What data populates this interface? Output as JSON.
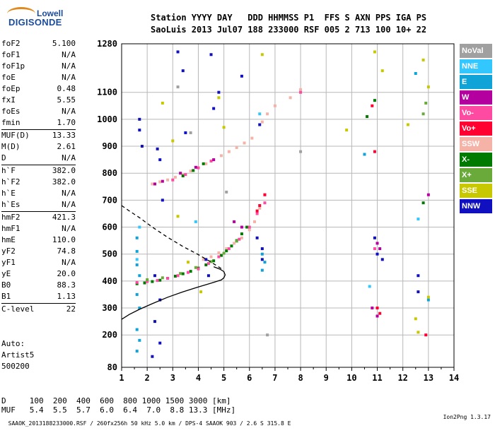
{
  "logo": {
    "line1": "Lowell",
    "line2": "DIGISONDE"
  },
  "header": {
    "line1": "Station YYYY DAY   DDD HHMMSS P1  FFS S AXN PPS IGA PS",
    "line2": "SaoLuis 2013 Jul07 188 233000 RSF 005 2 713 100 10+ 22"
  },
  "parameters": [
    [
      {
        "key": "foF2",
        "value": "5.100"
      },
      {
        "key": "foF1",
        "value": "N/A"
      },
      {
        "key": "foF1p",
        "value": "N/A"
      },
      {
        "key": "foE",
        "value": "N/A"
      },
      {
        "key": "foEp",
        "value": "0.48"
      },
      {
        "key": "fxI",
        "value": "5.55"
      },
      {
        "key": "foEs",
        "value": "N/A"
      },
      {
        "key": "fmin",
        "value": "1.70"
      }
    ],
    [
      {
        "key": "MUF(D)",
        "value": "13.33"
      },
      {
        "key": "M(D)",
        "value": "2.61"
      },
      {
        "key": "D",
        "value": "N/A"
      }
    ],
    [
      {
        "key": "h`F",
        "value": "382.0"
      },
      {
        "key": "h`F2",
        "value": "382.0"
      },
      {
        "key": "h`E",
        "value": "N/A"
      },
      {
        "key": "h`Es",
        "value": "N/A"
      }
    ],
    [
      {
        "key": "hmF2",
        "value": "421.3"
      },
      {
        "key": "hmF1",
        "value": "N/A"
      },
      {
        "key": "hmE",
        "value": "110.0"
      },
      {
        "key": "yF2",
        "value": "74.8"
      },
      {
        "key": "yF1",
        "value": "N/A"
      },
      {
        "key": "yE",
        "value": "20.0"
      },
      {
        "key": "B0",
        "value": "88.3"
      },
      {
        "key": "B1",
        "value": "1.13"
      }
    ],
    [
      {
        "key": "C-level",
        "value": "22"
      }
    ]
  ],
  "auto": {
    "line1": "Auto:",
    "line2": "Artist5",
    "line3": "500200"
  },
  "muf_table": {
    "d_row": "D     100  200  400  600  800 1000 1500 3000 [km]",
    "muf_row": "MUF   5.4  5.5  5.7  6.0  6.4  7.0  8.8 13.3 [MHz]"
  },
  "footer": {
    "left": "SAAOK_2013188233000.RSF / 260fx256h 50 kHz 5.0 km / DPS-4 SAAOK 903 / 2.6 S 315.8 E",
    "right": "Ion2Png 1.3.17"
  },
  "legend": [
    {
      "label": "NoVal",
      "color": "#a0a0a0"
    },
    {
      "label": "NNE",
      "color": "#33c7ff"
    },
    {
      "label": "E",
      "color": "#0fa3d8"
    },
    {
      "label": "W",
      "color": "#b4009f"
    },
    {
      "label": "Vo-",
      "color": "#ff4aa2"
    },
    {
      "label": "Vo+",
      "color": "#ff0030"
    },
    {
      "label": "SSW",
      "color": "#f5b3a8"
    },
    {
      "label": "X-",
      "color": "#007a00"
    },
    {
      "label": "X+",
      "color": "#6aaa3a"
    },
    {
      "label": "SSE",
      "color": "#c8c800"
    },
    {
      "label": "NNW",
      "color": "#1010c0"
    }
  ],
  "chart_data": {
    "type": "scatter",
    "xlabel": "",
    "ylabel": "",
    "xlim": [
      1,
      14
    ],
    "ylim": [
      80,
      1280
    ],
    "xticks": [
      1,
      2,
      3,
      4,
      5,
      6,
      7,
      8,
      9,
      10,
      11,
      12,
      13,
      14
    ],
    "yticks": [
      80,
      200,
      300,
      400,
      500,
      600,
      700,
      800,
      900,
      1000,
      1100,
      1280
    ],
    "grid": true,
    "series": [
      {
        "name": "SSW",
        "color": "#f5b3a8",
        "points": [
          [
            2.2,
            760
          ],
          [
            2.5,
            768
          ],
          [
            2.8,
            775
          ],
          [
            3.1,
            785
          ],
          [
            3.4,
            795
          ],
          [
            3.7,
            808
          ],
          [
            4.0,
            820
          ],
          [
            4.3,
            835
          ],
          [
            4.6,
            850
          ],
          [
            4.9,
            865
          ],
          [
            5.2,
            880
          ],
          [
            5.5,
            895
          ],
          [
            5.8,
            912
          ],
          [
            6.1,
            930
          ],
          [
            6.5,
            990
          ],
          [
            6.7,
            1020
          ],
          [
            7.0,
            1050
          ],
          [
            7.6,
            1080
          ],
          [
            8.0,
            1110
          ],
          [
            4.2,
            480
          ],
          [
            4.5,
            490
          ],
          [
            4.8,
            505
          ],
          [
            5.1,
            520
          ],
          [
            5.4,
            540
          ],
          [
            5.7,
            560
          ],
          [
            6.0,
            590
          ],
          [
            6.2,
            620
          ],
          [
            6.4,
            670
          ]
        ]
      },
      {
        "name": "X-",
        "color": "#007a00",
        "points": [
          [
            1.6,
            390
          ],
          [
            1.9,
            393
          ],
          [
            2.2,
            398
          ],
          [
            2.5,
            403
          ],
          [
            2.8,
            410
          ],
          [
            3.1,
            418
          ],
          [
            3.4,
            427
          ],
          [
            3.7,
            436
          ],
          [
            4.0,
            448
          ],
          [
            4.3,
            460
          ],
          [
            4.6,
            475
          ],
          [
            4.9,
            495
          ],
          [
            5.1,
            512
          ],
          [
            5.3,
            530
          ],
          [
            5.5,
            550
          ],
          [
            5.7,
            575
          ],
          [
            5.9,
            600
          ],
          [
            3.4,
            790
          ],
          [
            3.8,
            810
          ],
          [
            4.2,
            835
          ],
          [
            10.6,
            1010
          ],
          [
            10.9,
            1070
          ],
          [
            12.8,
            690
          ]
        ]
      },
      {
        "name": "Vo-",
        "color": "#ff4aa2",
        "points": [
          [
            1.6,
            395
          ],
          [
            2.0,
            398
          ],
          [
            2.4,
            402
          ],
          [
            2.8,
            410
          ],
          [
            3.2,
            420
          ],
          [
            3.6,
            432
          ],
          [
            4.0,
            445
          ],
          [
            4.4,
            465
          ],
          [
            4.8,
            490
          ],
          [
            5.2,
            520
          ],
          [
            5.6,
            555
          ],
          [
            6.0,
            600
          ],
          [
            6.3,
            650
          ],
          [
            6.6,
            690
          ],
          [
            6.6,
            720
          ],
          [
            3.0,
            775
          ],
          [
            3.5,
            795
          ],
          [
            4.0,
            820
          ],
          [
            4.5,
            845
          ],
          [
            8.0,
            1100
          ],
          [
            10.9,
            520
          ]
        ]
      },
      {
        "name": "NNW",
        "color": "#1010c0",
        "points": [
          [
            1.7,
            1000
          ],
          [
            1.7,
            960
          ],
          [
            1.8,
            900
          ],
          [
            2.4,
            890
          ],
          [
            2.5,
            850
          ],
          [
            2.6,
            700
          ],
          [
            2.3,
            420
          ],
          [
            2.5,
            330
          ],
          [
            2.3,
            250
          ],
          [
            2.5,
            170
          ],
          [
            2.2,
            120
          ],
          [
            3.2,
            1250
          ],
          [
            3.4,
            1180
          ],
          [
            3.5,
            950
          ],
          [
            4.3,
            480
          ],
          [
            4.4,
            420
          ],
          [
            4.5,
            1240
          ],
          [
            4.6,
            1040
          ],
          [
            4.8,
            1100
          ],
          [
            5.7,
            1160
          ],
          [
            6.4,
            980
          ],
          [
            6.3,
            560
          ],
          [
            6.5,
            520
          ],
          [
            6.5,
            480
          ],
          [
            10.9,
            560
          ],
          [
            11.0,
            500
          ],
          [
            11.2,
            480
          ],
          [
            12.6,
            360
          ],
          [
            12.6,
            420
          ]
        ]
      },
      {
        "name": "E",
        "color": "#0fa3d8",
        "points": [
          [
            1.6,
            560
          ],
          [
            1.6,
            510
          ],
          [
            1.6,
            460
          ],
          [
            1.7,
            420
          ],
          [
            1.6,
            350
          ],
          [
            1.7,
            300
          ],
          [
            1.6,
            220
          ],
          [
            1.7,
            180
          ],
          [
            1.6,
            140
          ],
          [
            6.5,
            500
          ],
          [
            6.6,
            470
          ],
          [
            6.5,
            440
          ],
          [
            13.0,
            330
          ],
          [
            12.5,
            1170
          ],
          [
            10.5,
            870
          ]
        ]
      },
      {
        "name": "W",
        "color": "#b4009f",
        "points": [
          [
            2.3,
            760
          ],
          [
            2.6,
            770
          ],
          [
            3.3,
            800
          ],
          [
            3.9,
            822
          ],
          [
            4.6,
            850
          ],
          [
            5.4,
            620
          ],
          [
            5.7,
            600
          ],
          [
            11.0,
            540
          ],
          [
            11.1,
            520
          ],
          [
            10.8,
            300
          ],
          [
            11.0,
            270
          ],
          [
            13.0,
            720
          ]
        ]
      },
      {
        "name": "SSE",
        "color": "#c8c800",
        "points": [
          [
            2.6,
            1060
          ],
          [
            3.0,
            920
          ],
          [
            3.2,
            640
          ],
          [
            3.6,
            470
          ],
          [
            4.1,
            360
          ],
          [
            4.8,
            1080
          ],
          [
            5.0,
            970
          ],
          [
            6.5,
            1240
          ],
          [
            9.8,
            960
          ],
          [
            10.9,
            1250
          ],
          [
            11.2,
            1180
          ],
          [
            12.2,
            980
          ],
          [
            12.5,
            260
          ],
          [
            12.6,
            210
          ],
          [
            12.8,
            1220
          ],
          [
            13.0,
            1120
          ],
          [
            13.0,
            340
          ]
        ]
      },
      {
        "name": "Vo+",
        "color": "#ff0030",
        "points": [
          [
            6.4,
            680
          ],
          [
            6.6,
            720
          ],
          [
            6.3,
            660
          ],
          [
            10.8,
            1050
          ],
          [
            10.9,
            880
          ],
          [
            11.0,
            300
          ],
          [
            11.1,
            280
          ],
          [
            12.9,
            200
          ]
        ]
      },
      {
        "name": "X+",
        "color": "#6aaa3a",
        "points": [
          [
            2.0,
            405
          ],
          [
            2.6,
            412
          ],
          [
            3.3,
            428
          ],
          [
            3.9,
            450
          ],
          [
            4.5,
            472
          ],
          [
            5.0,
            503
          ],
          [
            5.5,
            548
          ],
          [
            12.8,
            1020
          ],
          [
            12.9,
            1060
          ]
        ]
      },
      {
        "name": "NNE",
        "color": "#33c7ff",
        "points": [
          [
            1.7,
            600
          ],
          [
            1.6,
            480
          ],
          [
            3.9,
            620
          ],
          [
            6.4,
            1020
          ],
          [
            10.7,
            380
          ],
          [
            12.6,
            630
          ]
        ]
      },
      {
        "name": "NoVal",
        "color": "#a0a0a0",
        "points": [
          [
            3.2,
            1120
          ],
          [
            3.7,
            950
          ],
          [
            5.1,
            730
          ],
          [
            6.7,
            200
          ],
          [
            8.0,
            880
          ]
        ]
      }
    ],
    "curves": [
      {
        "style": "solid",
        "points": [
          [
            1.0,
            258
          ],
          [
            1.3,
            276
          ],
          [
            1.7,
            295
          ],
          [
            2.2,
            316
          ],
          [
            2.8,
            340
          ],
          [
            3.4,
            360
          ],
          [
            4.0,
            378
          ],
          [
            4.5,
            392
          ],
          [
            4.9,
            404
          ],
          [
            5.0,
            412
          ],
          [
            5.05,
            423
          ],
          [
            5.0,
            435
          ],
          [
            4.85,
            444
          ],
          [
            4.6,
            453
          ]
        ]
      },
      {
        "style": "dashed",
        "points": [
          [
            1.0,
            680
          ],
          [
            1.3,
            660
          ],
          [
            1.7,
            635
          ],
          [
            2.2,
            600
          ],
          [
            2.8,
            562
          ],
          [
            3.4,
            528
          ],
          [
            4.0,
            498
          ],
          [
            4.4,
            476
          ],
          [
            4.7,
            458
          ],
          [
            4.9,
            446
          ]
        ]
      }
    ]
  }
}
